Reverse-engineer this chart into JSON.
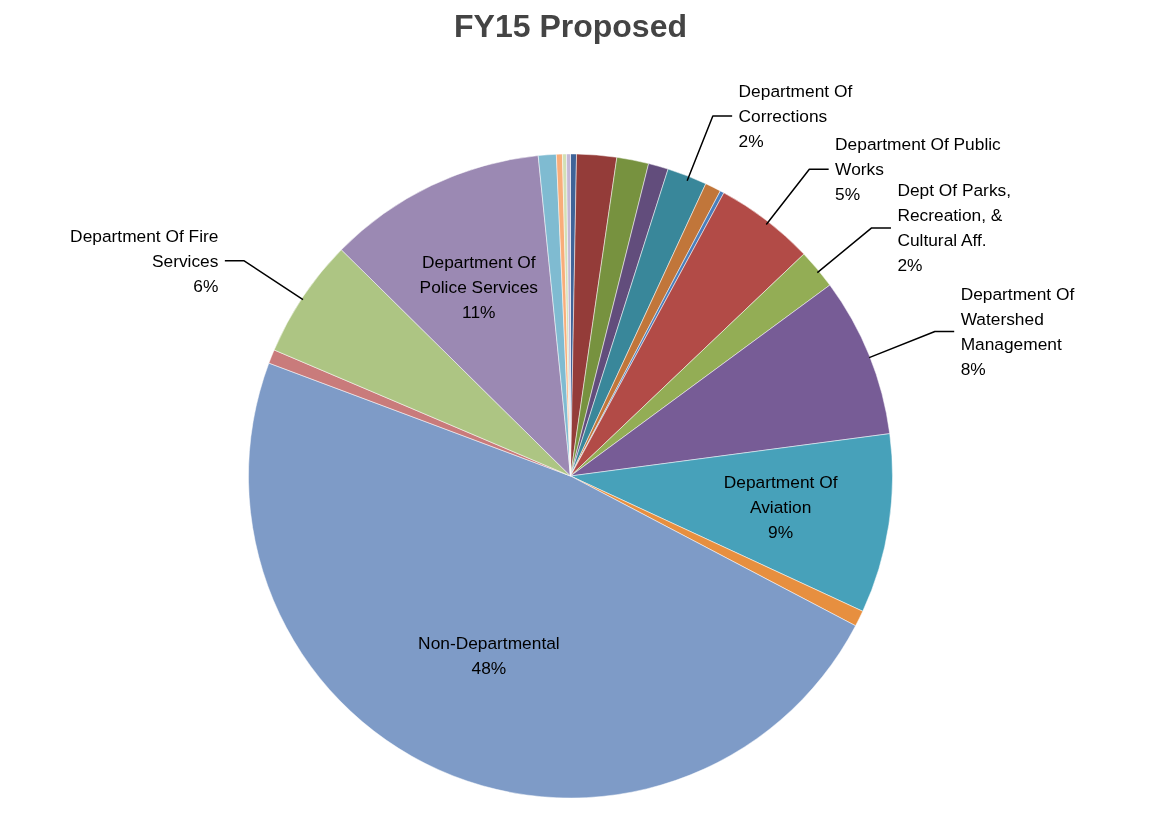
{
  "chart_data": {
    "type": "pie",
    "title": "FY15 Proposed",
    "categories": [
      null,
      null,
      null,
      null,
      "Department Of Corrections",
      null,
      null,
      "Department Of Public Works",
      "Dept Of Parks, Recreation, & Cultural Aff.",
      "Department Of Watershed Management",
      "Department Of Aviation",
      null,
      "Non-Departmental",
      null,
      "Department Of Fire Services",
      "Department Of Police Services",
      null,
      null,
      null,
      null
    ],
    "values": [
      0.3,
      2.0,
      1.6,
      1.0,
      2,
      0.8,
      0.2,
      5,
      2,
      8,
      9,
      0.8,
      48,
      0.7,
      6,
      11,
      0.9,
      0.3,
      0.2,
      0.2
    ],
    "value_labels": [
      null,
      null,
      null,
      null,
      "2%",
      null,
      null,
      "5%",
      "2%",
      "8%",
      "9%",
      null,
      "48%",
      null,
      "6%",
      "11%",
      null,
      null,
      null,
      null
    ],
    "colors": [
      "#3f6498",
      "#943c39",
      "#77923f",
      "#624d7c",
      "#39879a",
      "#c1763a",
      "#4a7ebb",
      "#b24b47",
      "#93ad55",
      "#775c96",
      "#47a1ba",
      "#e78f3f",
      "#7e9bc7",
      "#c97b7b",
      "#adc583",
      "#9b89b3",
      "#7fbbd1",
      "#f8ad7a",
      "#d3e0b5",
      "#c4b8d6"
    ]
  }
}
